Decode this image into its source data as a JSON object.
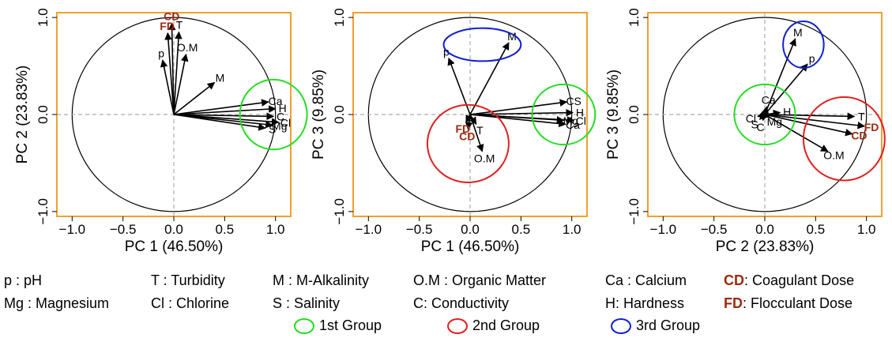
{
  "colors": {
    "frame": "#f0a030",
    "arrow": "#000000",
    "bold_label": "#9b2a10",
    "group1": "#22dd22",
    "group2": "#e02020",
    "group3": "#1020d0",
    "dashed": "#aaaaaa"
  },
  "chart_data": [
    {
      "type": "scatter",
      "title": "",
      "xlabel": "PC 1 (46.50%)",
      "ylabel": "PC 2 (23.83%)",
      "xlim": [
        -1.15,
        1.15
      ],
      "ylim": [
        -1.05,
        1.05
      ],
      "xticks": [
        "−1.0",
        "−0.5",
        "0.0",
        "0.5",
        "1.0"
      ],
      "yticks": [
        "−1.0",
        "0.0",
        "1.0"
      ],
      "vectors": [
        {
          "label": "p",
          "x": -0.11,
          "y": 0.56
        },
        {
          "label": "FD",
          "x": -0.06,
          "y": 0.84,
          "bold": true
        },
        {
          "label": "CD",
          "x": -0.02,
          "y": 0.94,
          "bold": true
        },
        {
          "label": "T",
          "x": 0.05,
          "y": 0.85
        },
        {
          "label": "O.M",
          "x": 0.12,
          "y": 0.62
        },
        {
          "label": "M",
          "x": 0.4,
          "y": 0.33
        },
        {
          "label": "Ca",
          "x": 0.93,
          "y": 0.13
        },
        {
          "label": "H",
          "x": 1.0,
          "y": 0.06
        },
        {
          "label": "C",
          "x": 0.98,
          "y": -0.02
        },
        {
          "label": "Cl",
          "x": 1.03,
          "y": -0.08
        },
        {
          "label": "Mg",
          "x": 0.97,
          "y": -0.11
        },
        {
          "label": "S",
          "x": 0.9,
          "y": -0.14
        }
      ],
      "groups": [
        {
          "group": 1,
          "cx": 0.98,
          "cy": 0.0,
          "rx": 0.33,
          "ry": 0.36
        }
      ]
    },
    {
      "type": "scatter",
      "title": "",
      "xlabel": "PC 1 (46.50%)",
      "ylabel": "PC 3 (9.85%)",
      "xlim": [
        -1.15,
        1.15
      ],
      "ylim": [
        -1.05,
        1.05
      ],
      "xticks": [
        "−1.0",
        "−0.5",
        "0.0",
        "0.5",
        "1.0"
      ],
      "yticks": [
        "−1.0",
        "0.0",
        "1.0"
      ],
      "vectors": [
        {
          "label": "p",
          "x": -0.21,
          "y": 0.58
        },
        {
          "label": "M",
          "x": 0.38,
          "y": 0.74
        },
        {
          "label": "CS",
          "x": 0.95,
          "y": 0.13
        },
        {
          "label": "H",
          "x": 1.01,
          "y": 0.02
        },
        {
          "label": "Cl",
          "x": 1.02,
          "y": -0.06
        },
        {
          "label": "Mg",
          "x": 0.92,
          "y": -0.06
        },
        {
          "label": "Ca",
          "x": 0.94,
          "y": -0.1
        },
        {
          "label": "FD",
          "x": -0.04,
          "y": -0.08,
          "bold": true
        },
        {
          "label": "CD",
          "x": -0.02,
          "y": -0.15,
          "bold": true
        },
        {
          "label": "T",
          "x": 0.06,
          "y": -0.1
        },
        {
          "label": "O.M",
          "x": 0.12,
          "y": -0.38
        }
      ],
      "groups": [
        {
          "group": 3,
          "cx": 0.12,
          "cy": 0.72,
          "rx": 0.38,
          "ry": 0.17
        },
        {
          "group": 2,
          "cx": -0.02,
          "cy": -0.3,
          "rx": 0.4,
          "ry": 0.4
        },
        {
          "group": 1,
          "cx": 0.92,
          "cy": 0.0,
          "rx": 0.31,
          "ry": 0.31
        }
      ]
    },
    {
      "type": "scatter",
      "title": "",
      "xlabel": "PC 2 (23.83%)",
      "ylabel": "PC 3 (9.85%)",
      "xlim": [
        -1.15,
        1.15
      ],
      "ylim": [
        -1.05,
        1.05
      ],
      "xticks": [
        "−1.0",
        "−0.5",
        "0.0",
        "0.5",
        "1.0"
      ],
      "yticks": [
        "−1.0",
        "0.0",
        "1.0"
      ],
      "vectors": [
        {
          "label": "M",
          "x": 0.3,
          "y": 0.78
        },
        {
          "label": "p",
          "x": 0.42,
          "y": 0.52
        },
        {
          "label": "Ca",
          "x": 0.02,
          "y": 0.08
        },
        {
          "label": "H",
          "x": 0.15,
          "y": 0.02
        },
        {
          "label": "Cl",
          "x": -0.07,
          "y": -0.02
        },
        {
          "label": "S",
          "x": -0.05,
          "y": -0.05
        },
        {
          "label": "C",
          "x": -0.02,
          "y": -0.06
        },
        {
          "label": "Mg",
          "x": 0.04,
          "y": -0.03
        },
        {
          "label": "T",
          "x": 0.88,
          "y": -0.02
        },
        {
          "label": "FD",
          "x": 0.98,
          "y": -0.12,
          "bold": true
        },
        {
          "label": "CD",
          "x": 0.86,
          "y": -0.2,
          "bold": true
        },
        {
          "label": "O.M",
          "x": 0.62,
          "y": -0.38
        }
      ],
      "groups": [
        {
          "group": 3,
          "cx": 0.38,
          "cy": 0.72,
          "rx": 0.2,
          "ry": 0.24
        },
        {
          "group": 1,
          "cx": 0.0,
          "cy": 0.0,
          "rx": 0.3,
          "ry": 0.31
        },
        {
          "group": 2,
          "cx": 0.78,
          "cy": -0.25,
          "rx": 0.4,
          "ry": 0.43
        }
      ]
    }
  ],
  "legend": {
    "row1": [
      "p : pH",
      "T : Turbidity",
      "M : M-Alkalinity",
      "O.M : Organic Matter",
      "Ca : Calcium"
    ],
    "row2": [
      "Mg : Magnesium",
      "Cl : Chlorine",
      "S : Salinity",
      "C: Conductivity",
      "H: Hardness"
    ],
    "cd_abbr": "CD",
    "cd_text": ": Coagulant Dose",
    "fd_abbr": "FD",
    "fd_text": ": Flocculant Dose",
    "groups": [
      "1st Group",
      "2nd Group",
      "3rd Group"
    ]
  }
}
